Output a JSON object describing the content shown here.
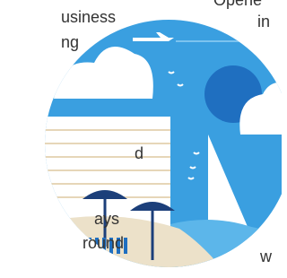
{
  "left_text": [
    "usiness",
    "ng",
    "d",
    "ays",
    "round"
  ],
  "right_text": [
    "Opene",
    "in",
    "w"
  ]
}
